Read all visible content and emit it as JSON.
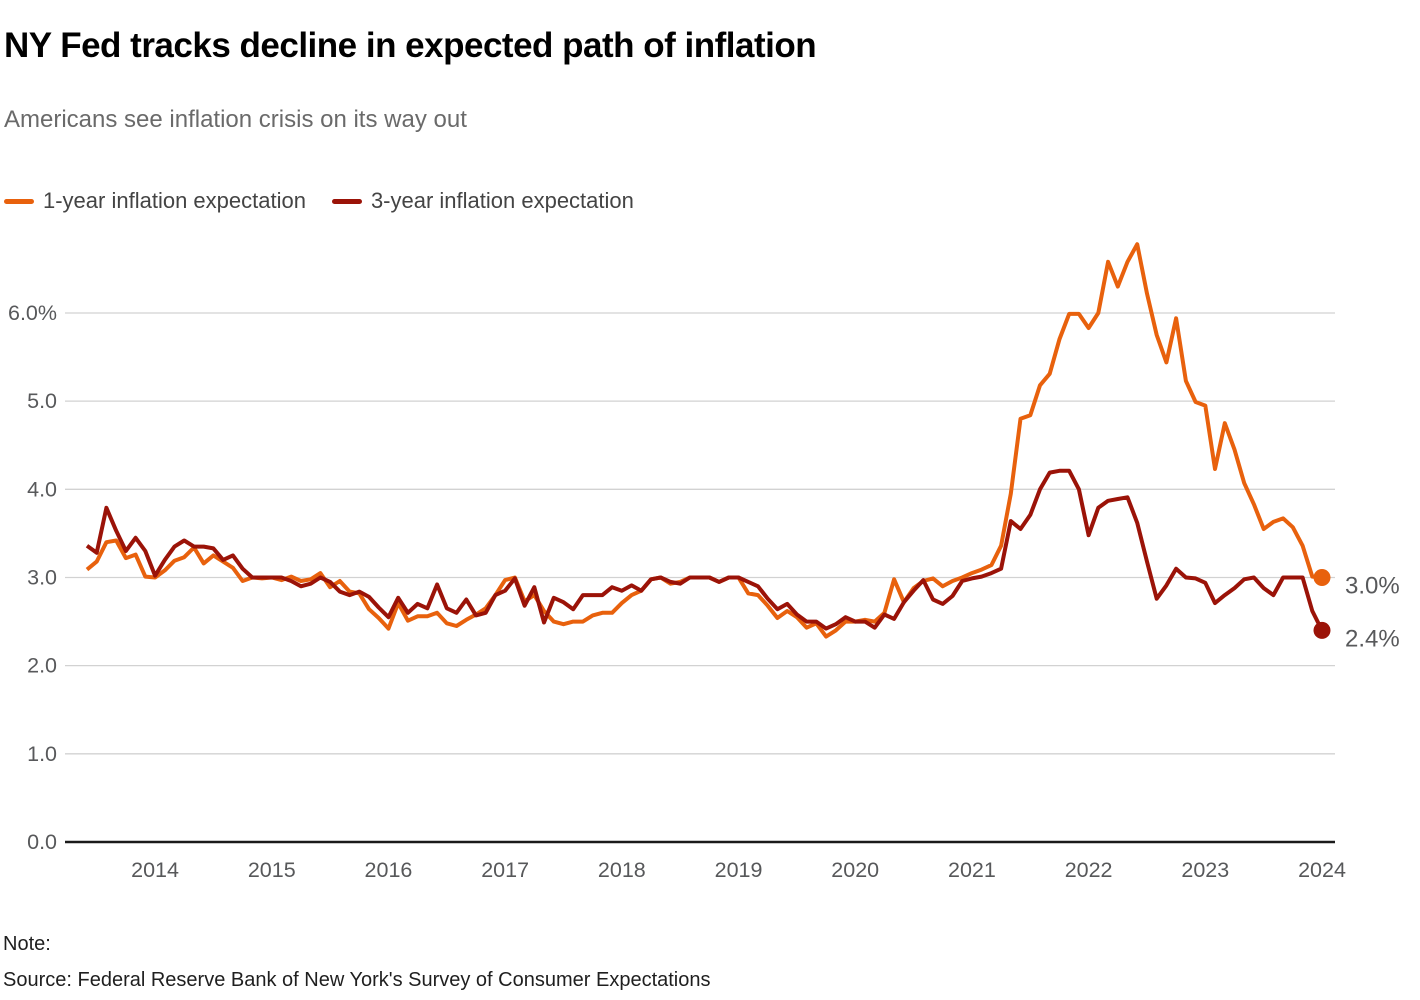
{
  "header": {
    "title": "NY Fed tracks decline in expected path of inflation",
    "subtitle": "Americans see inflation crisis on its way out"
  },
  "footer": {
    "note": "Note:",
    "source": "Source: Federal Reserve Bank of New York's Survey of Consumer Expectations"
  },
  "chart_data": {
    "type": "line",
    "unit": "%",
    "frequency": "monthly",
    "x_start": "2013-06",
    "x_end": "2024-01",
    "ylim": [
      0,
      6.9
    ],
    "grid": "horizontal",
    "legend_position": "top-left",
    "yticks": [
      {
        "value": 0.0,
        "label": "0.0"
      },
      {
        "value": 1.0,
        "label": "1.0"
      },
      {
        "value": 2.0,
        "label": "2.0"
      },
      {
        "value": 3.0,
        "label": "3.0"
      },
      {
        "value": 4.0,
        "label": "4.0"
      },
      {
        "value": 5.0,
        "label": "5.0"
      },
      {
        "value": 6.0,
        "label": "6.0%"
      }
    ],
    "x_tick_years": [
      2014,
      2015,
      2016,
      2017,
      2018,
      2019,
      2020,
      2021,
      2022,
      2023,
      2024
    ],
    "series": [
      {
        "name": "1-year inflation expectation",
        "color": "#E8610D",
        "end_label": "3.0%",
        "values": [
          3.09,
          3.18,
          3.4,
          3.42,
          3.22,
          3.26,
          3.01,
          3.0,
          3.08,
          3.19,
          3.23,
          3.34,
          3.16,
          3.25,
          3.18,
          3.11,
          2.96,
          3.0,
          2.99,
          3.0,
          2.97,
          3.01,
          2.96,
          2.98,
          3.05,
          2.89,
          2.96,
          2.84,
          2.82,
          2.64,
          2.54,
          2.42,
          2.71,
          2.51,
          2.56,
          2.56,
          2.6,
          2.48,
          2.45,
          2.52,
          2.58,
          2.65,
          2.8,
          2.97,
          3.0,
          2.73,
          2.8,
          2.62,
          2.5,
          2.47,
          2.5,
          2.5,
          2.57,
          2.6,
          2.6,
          2.71,
          2.8,
          2.85,
          2.98,
          3.0,
          2.93,
          2.95,
          3.0,
          3.0,
          3.0,
          2.95,
          3.0,
          3.0,
          2.82,
          2.8,
          2.68,
          2.54,
          2.62,
          2.55,
          2.43,
          2.48,
          2.33,
          2.4,
          2.5,
          2.5,
          2.52,
          2.5,
          2.6,
          2.98,
          2.72,
          2.88,
          2.96,
          2.99,
          2.9,
          2.96,
          3.0,
          3.05,
          3.09,
          3.14,
          3.36,
          3.95,
          4.8,
          4.84,
          5.18,
          5.31,
          5.7,
          5.99,
          5.99,
          5.83,
          6.0,
          6.58,
          6.3,
          6.58,
          6.78,
          6.22,
          5.75,
          5.44,
          5.94,
          5.23,
          4.99,
          4.95,
          4.23,
          4.75,
          4.45,
          4.07,
          3.83,
          3.55,
          3.63,
          3.67,
          3.57,
          3.36,
          3.01,
          3.0
        ]
      },
      {
        "name": "3-year inflation expectation",
        "color": "#9B1308",
        "end_label": "2.4%",
        "values": [
          3.36,
          3.28,
          3.79,
          3.53,
          3.3,
          3.45,
          3.3,
          3.02,
          3.2,
          3.35,
          3.42,
          3.35,
          3.35,
          3.33,
          3.2,
          3.25,
          3.1,
          3.0,
          3.0,
          3.0,
          3.0,
          2.96,
          2.9,
          2.93,
          3.0,
          2.95,
          2.84,
          2.8,
          2.84,
          2.78,
          2.66,
          2.55,
          2.77,
          2.6,
          2.7,
          2.65,
          2.92,
          2.65,
          2.6,
          2.75,
          2.57,
          2.6,
          2.8,
          2.85,
          2.99,
          2.68,
          2.89,
          2.49,
          2.77,
          2.72,
          2.64,
          2.8,
          2.8,
          2.8,
          2.89,
          2.85,
          2.91,
          2.85,
          2.98,
          3.0,
          2.95,
          2.93,
          3.0,
          3.0,
          3.0,
          2.95,
          3.0,
          3.0,
          2.95,
          2.9,
          2.76,
          2.64,
          2.7,
          2.58,
          2.5,
          2.5,
          2.42,
          2.47,
          2.55,
          2.5,
          2.5,
          2.43,
          2.58,
          2.53,
          2.72,
          2.85,
          2.97,
          2.75,
          2.7,
          2.79,
          2.96,
          2.99,
          3.01,
          3.05,
          3.1,
          3.64,
          3.55,
          3.71,
          4.0,
          4.19,
          4.21,
          4.21,
          4.0,
          3.48,
          3.79,
          3.87,
          3.89,
          3.91,
          3.62,
          3.18,
          2.76,
          2.91,
          3.1,
          3.0,
          2.99,
          2.94,
          2.71,
          2.8,
          2.88,
          2.98,
          3.0,
          2.88,
          2.8,
          3.0,
          3.0,
          3.0,
          2.62,
          2.4
        ]
      }
    ]
  }
}
